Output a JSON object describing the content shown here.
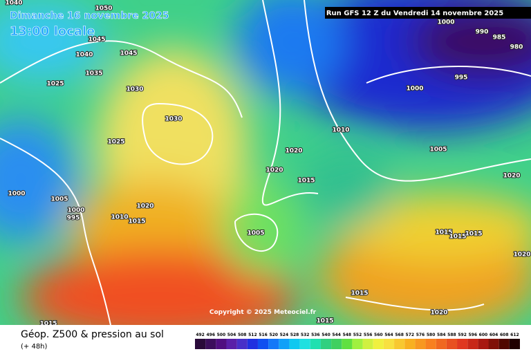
{
  "header": {
    "date": "Dimanche 16 novembre 2025",
    "time": "13:00 locale",
    "run": "Run GFS 12 Z du Vendredi 14 novembre 2025"
  },
  "copyright": "Copyright © 2025 Meteociel.fr",
  "footer": {
    "title": "Géop. Z500 & pression au sol",
    "lead": "(+ 48h)"
  },
  "isobars": [
    1040,
    1050,
    1045,
    1040,
    1045,
    1035,
    1025,
    1030,
    1030,
    1025,
    1020,
    1020,
    1015,
    1000,
    1005,
    1000,
    995,
    1010,
    1015,
    1020,
    1005,
    1010,
    1005,
    1020,
    1015,
    1015,
    1015,
    1020,
    1015,
    1020,
    1015,
    1015,
    1000,
    990,
    985,
    980,
    995,
    1000
  ],
  "scale": {
    "labels": [
      492,
      496,
      500,
      504,
      508,
      512,
      516,
      520,
      524,
      528,
      532,
      536,
      540,
      544,
      548,
      552,
      556,
      560,
      564,
      568,
      572,
      576,
      580,
      584,
      588,
      592,
      596,
      600,
      604,
      608,
      612
    ]
  }
}
